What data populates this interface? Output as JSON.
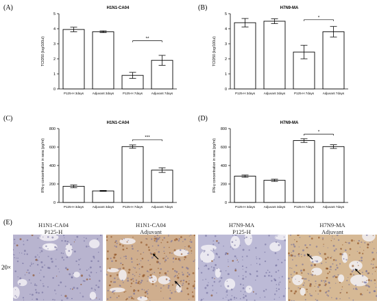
{
  "panels": {
    "A": "(A)",
    "B": "(B)",
    "C": "(C)",
    "D": "(D)",
    "E": "(E)"
  },
  "chart_data": [
    {
      "id": "A",
      "type": "bar",
      "title": "H1N1-CA04",
      "ylabel": "TCID50 (log/100ul)",
      "xlabel": "",
      "ylim": [
        0,
        5
      ],
      "yticks": [
        "0",
        "1",
        "2",
        "3",
        "4",
        "5"
      ],
      "categories": [
        "P125-H  3days",
        "Adjuvant  3days",
        "P125-H  7days",
        "Adjuvant  7days"
      ],
      "values": [
        3.95,
        3.8,
        0.9,
        1.9
      ],
      "errors": [
        0.15,
        0.06,
        0.2,
        0.33
      ],
      "significance": {
        "from": 2,
        "to": 3,
        "label": "**",
        "y": 3.2
      }
    },
    {
      "id": "B",
      "type": "bar",
      "title": "H7N9-MA",
      "ylabel": "TCID50 (log/100ul)",
      "xlabel": "",
      "ylim": [
        0,
        5
      ],
      "yticks": [
        "0",
        "1",
        "2",
        "3",
        "4",
        "5"
      ],
      "categories": [
        "P125-H  3days",
        "Adjuvant  3days",
        "P125-H  7days",
        "Adjuvant  7days"
      ],
      "values": [
        4.4,
        4.5,
        2.45,
        3.8
      ],
      "errors": [
        0.28,
        0.16,
        0.45,
        0.35
      ],
      "significance": {
        "from": 2,
        "to": 3,
        "label": "*",
        "y": 4.6
      }
    },
    {
      "id": "C",
      "type": "bar",
      "title": "H1N1-CA04",
      "ylabel": "IFN-γ concentration in sera (pg/ml)",
      "xlabel": "",
      "ylim": [
        0,
        800
      ],
      "yticks": [
        "0",
        "200",
        "400",
        "600",
        "800"
      ],
      "categories": [
        "P125-H  3days",
        "Adjuvant  3days",
        "P125-H  7days",
        "Adjuvant  7days"
      ],
      "values": [
        175,
        125,
        605,
        350
      ],
      "errors": [
        15,
        5,
        18,
        25
      ],
      "significance": {
        "from": 2,
        "to": 3,
        "label": "***",
        "y": 680
      }
    },
    {
      "id": "D",
      "type": "bar",
      "title": "H7N9-MA",
      "ylabel": "IFN-γ concentration in sera (pg/ml)",
      "xlabel": "",
      "ylim": [
        0,
        800
      ],
      "yticks": [
        "0",
        "200",
        "400",
        "600",
        "800"
      ],
      "categories": [
        "P125-H  3days",
        "Adjuvant  3days",
        "P125-H  7days",
        "Adjuvant  7days"
      ],
      "values": [
        285,
        240,
        670,
        605
      ],
      "errors": [
        12,
        12,
        20,
        20
      ],
      "significance": {
        "from": 2,
        "to": 3,
        "label": "*",
        "y": 740
      }
    }
  ],
  "micrographs": {
    "magnification": "20×",
    "columns": [
      {
        "line1": "H1N1-CA04",
        "line2": "P125-H",
        "tone": "#b8b4cf",
        "stain": 0.08,
        "arrows": 0
      },
      {
        "line1": "H1N1-CA04",
        "line2": "Adjuvant",
        "tone": "#cfae8e",
        "stain": 0.6,
        "arrows": 2
      },
      {
        "line1": "H7N9-MA",
        "line2": "P125-H",
        "tone": "#bcbad6",
        "stain": 0.05,
        "arrows": 0
      },
      {
        "line1": "H7N9-MA",
        "line2": "Adjuvant",
        "tone": "#d6b995",
        "stain": 0.45,
        "arrows": 2
      }
    ]
  }
}
